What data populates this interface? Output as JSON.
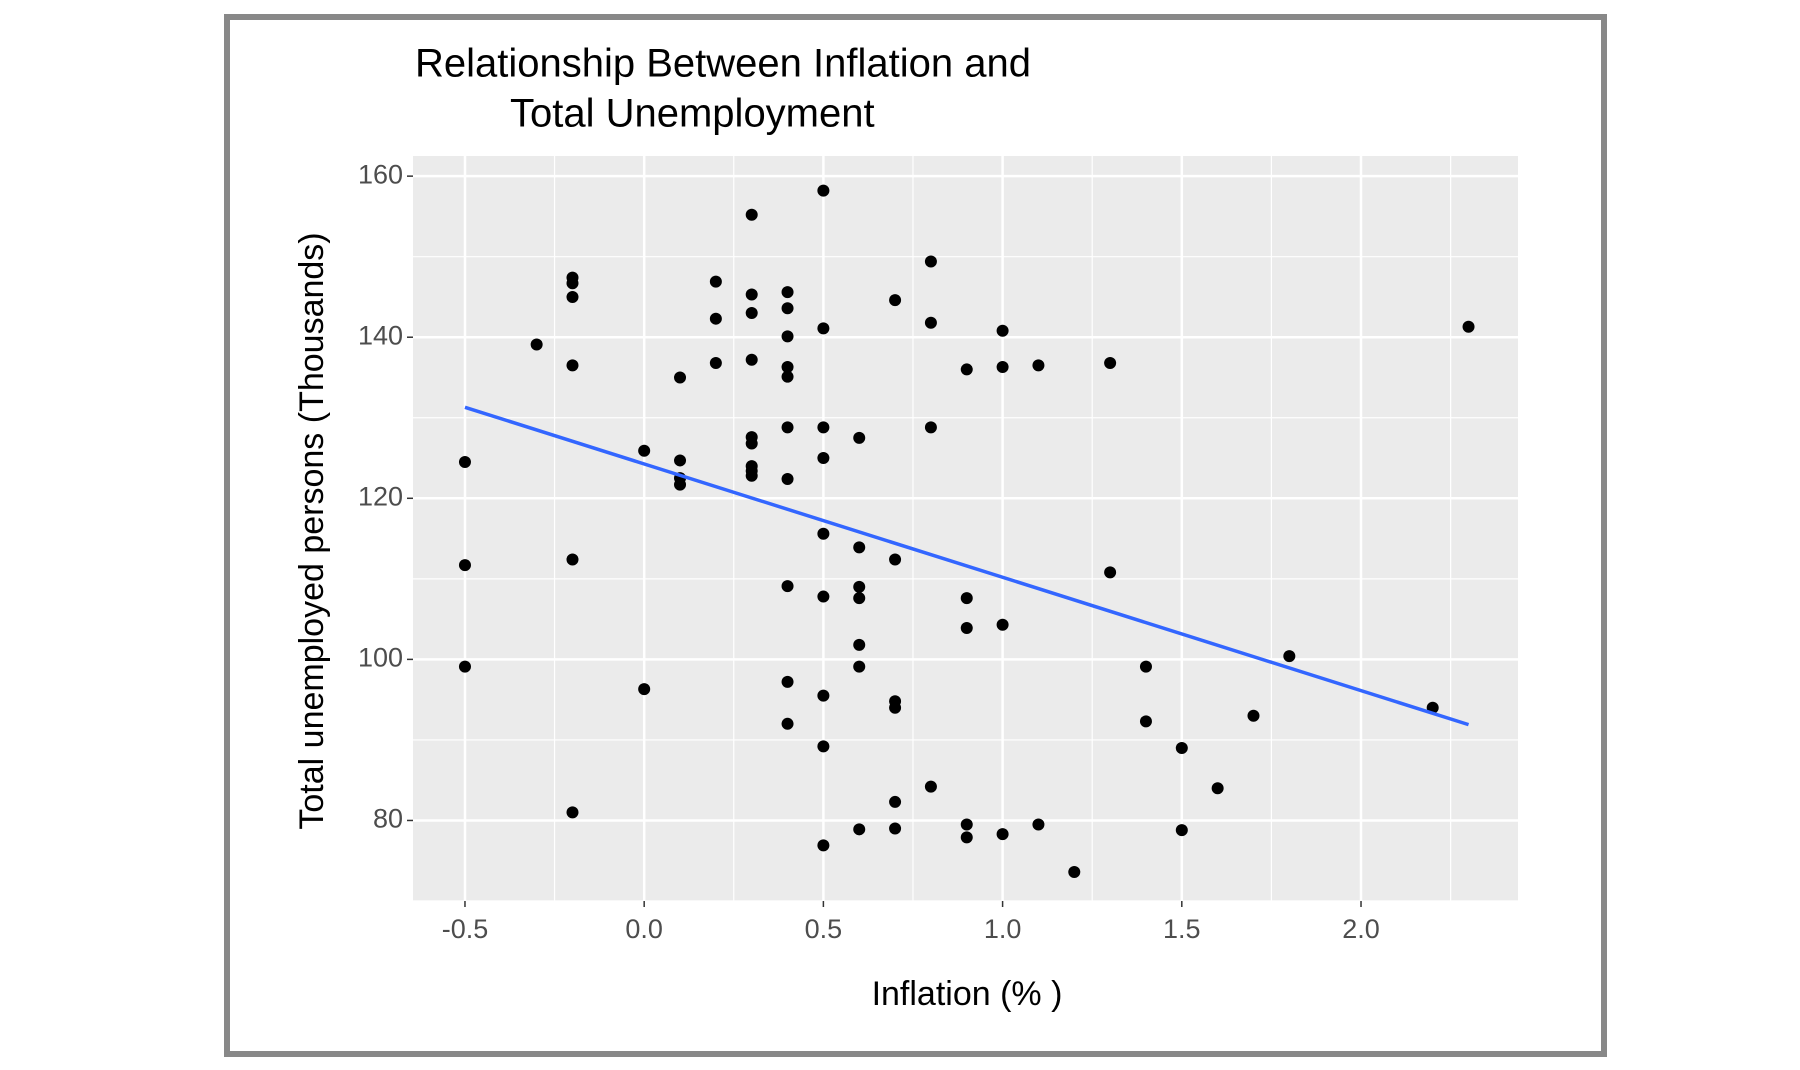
{
  "chart_data": {
    "type": "scatter",
    "title": [
      "Relationship Between Inflation and",
      "Total Unemployment"
    ],
    "x_label": "Inflation (% )",
    "y_label": "Total unemployed persons (Thousands)",
    "xlim": [
      -0.645,
      2.438
    ],
    "xticks": [
      -0.5,
      {
        "value": 0,
        "label": "0.0"
      },
      0.5,
      {
        "value": 1,
        "label": "1.0"
      },
      1.5,
      {
        "value": 2,
        "label": "2.0"
      }
    ],
    "ylim": [
      70,
      162.5
    ],
    "yticks": [
      80,
      100,
      120,
      140,
      160
    ],
    "grid": true,
    "series": [
      {
        "color": "#000000",
        "x": [
          0.5,
          0.3,
          0.8,
          -0.2,
          -0.2,
          -0.2,
          0.2,
          0.3,
          0.4,
          0.7,
          0.4,
          0.3,
          0.2,
          0.8,
          2.3,
          0.5,
          1.0,
          0.4,
          -0.3,
          0.3,
          0.2,
          1.3,
          -0.2,
          1.1,
          0.4,
          1.0,
          0.9,
          0.4,
          0.1,
          0.4,
          0.5,
          0.8,
          0.3,
          0.3,
          0.6,
          0.0,
          -0.5,
          0.1,
          0.5,
          0.3,
          0.3,
          0.3,
          0.1,
          0.1,
          0.4,
          0.5,
          0.6,
          -0.5,
          -0.2,
          0.7,
          1.3,
          0.4,
          0.6,
          0.6,
          0.5,
          0.9,
          0.9,
          1.0,
          0.6,
          1.8,
          -0.5,
          0.6,
          1.4,
          0.4,
          0.0,
          0.5,
          0.7,
          0.7,
          2.2,
          1.7,
          0.4,
          1.4,
          0.5,
          1.5,
          0.8,
          1.6,
          -0.2,
          0.7,
          0.9,
          0.9,
          1.1,
          0.6,
          0.7,
          1.5,
          1.0,
          0.5,
          1.2
        ],
        "values": [
          158.2,
          155.2,
          149.4,
          147.4,
          146.7,
          145.0,
          146.9,
          145.3,
          145.6,
          144.6,
          143.6,
          143.0,
          142.3,
          141.8,
          141.3,
          141.1,
          140.8,
          140.1,
          139.1,
          137.2,
          136.8,
          136.8,
          136.5,
          136.5,
          136.3,
          136.3,
          136.0,
          135.1,
          135.0,
          128.8,
          128.8,
          128.8,
          127.6,
          126.8,
          127.5,
          125.9,
          124.5,
          124.7,
          125.0,
          124.0,
          123.4,
          122.8,
          122.5,
          121.7,
          122.4,
          115.6,
          113.9,
          111.7,
          112.4,
          112.4,
          110.8,
          109.1,
          109.0,
          107.6,
          107.8,
          107.6,
          103.9,
          104.3,
          101.8,
          100.4,
          99.1,
          99.1,
          99.1,
          97.2,
          96.3,
          95.5,
          94.8,
          94.0,
          94.0,
          93.0,
          92.0,
          92.3,
          89.2,
          89.0,
          84.2,
          84.0,
          81.0,
          82.3,
          79.5,
          77.9,
          79.5,
          78.9,
          79.0,
          78.8,
          78.3,
          76.9,
          73.6
        ]
      }
    ],
    "trend": {
      "color": "#3366ff",
      "x": [
        -0.5,
        2.3
      ],
      "values": [
        131.3,
        91.9
      ]
    }
  }
}
